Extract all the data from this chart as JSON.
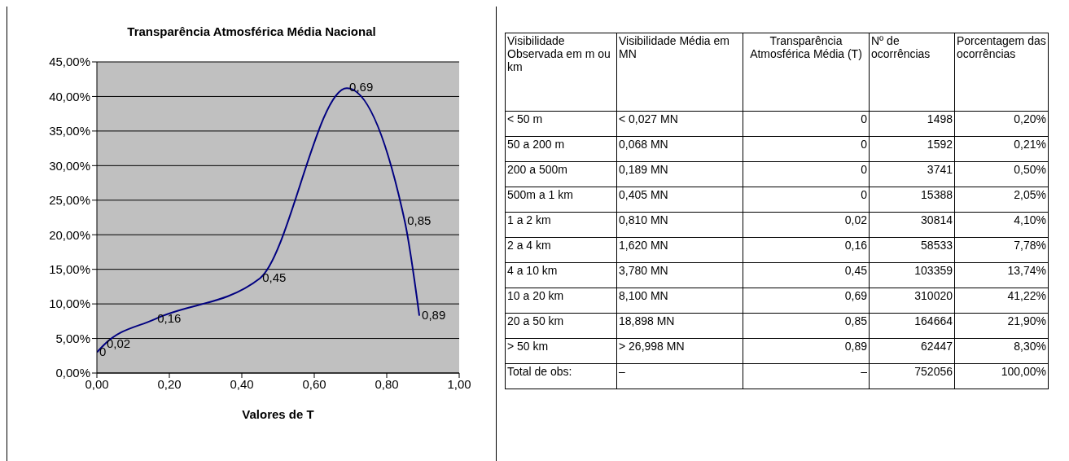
{
  "chart_data": [
    {
      "type": "line",
      "title": "Transparência Atmosférica Média Nacional",
      "xlabel": "Valores de T",
      "x": [
        0,
        0.02,
        0.16,
        0.45,
        0.69,
        0.85,
        0.89
      ],
      "series": [
        {
          "color": "#000080",
          "values": [
            3,
            4.1,
            7.8,
            13.7,
            41.2,
            21.9,
            8.3
          ]
        }
      ],
      "annotations": [
        {
          "text": "0",
          "x": 0,
          "y": 3
        },
        {
          "text": "0,02",
          "x": 0.02,
          "y": 4.1
        },
        {
          "text": "0,16",
          "x": 0.16,
          "y": 7.8
        },
        {
          "text": "0,45",
          "x": 0.45,
          "y": 13.7
        },
        {
          "text": "0,69",
          "x": 0.69,
          "y": 41.2
        },
        {
          "text": "0,85",
          "x": 0.85,
          "y": 21.9
        },
        {
          "text": "0,89",
          "x": 0.89,
          "y": 8.3
        }
      ],
      "xlim": [
        0,
        1
      ],
      "xticks": [
        {
          "value": 0,
          "label": "0,00"
        },
        {
          "value": 0.2,
          "label": "0,20"
        },
        {
          "value": 0.4,
          "label": "0,40"
        },
        {
          "value": 0.6,
          "label": "0,60"
        },
        {
          "value": 0.8,
          "label": "0,80"
        },
        {
          "value": 1,
          "label": "1,00"
        }
      ],
      "ylim": [
        0,
        45
      ],
      "yticks": [
        {
          "value": 0,
          "label": "0,00%"
        },
        {
          "value": 5,
          "label": "5,00%"
        },
        {
          "value": 10,
          "label": "10,00%"
        },
        {
          "value": 15,
          "label": "15,00%"
        },
        {
          "value": 20,
          "label": "20,00%"
        },
        {
          "value": 25,
          "label": "25,00%"
        },
        {
          "value": 30,
          "label": "30,00%"
        },
        {
          "value": 35,
          "label": "35,00%"
        },
        {
          "value": 40,
          "label": "40,00%"
        },
        {
          "value": 45,
          "label": "45,00%"
        }
      ],
      "grid": "y",
      "legend": false
    },
    {
      "type": "other",
      "categories": [
        "Visibilidade Observada em m ou km",
        "Visibilidade Média em MN",
        "Transparência Atmosférica Média (T)",
        "Nº de ocorrências",
        "Porcentagem das ocorrências"
      ],
      "annotations": [
        "< 50 m",
        "< 0,027 MN",
        "0",
        "1498",
        "0,20%",
        " 50 a 200 m",
        "0,068 MN",
        "0",
        "1592",
        "0,21%",
        "200 a 500m",
        "0,189 MN",
        "0",
        "3741",
        "0,50%",
        "500m a 1 km",
        "0,405 MN",
        "0",
        "15388",
        "2,05%",
        "1 a 2 km",
        "0,810 MN",
        "0,02",
        "30814",
        "4,10%",
        "2 a 4 km",
        "1,620 MN",
        "0,16",
        "58533",
        "7,78%",
        "4 a 10 km",
        "3,780 MN",
        "0,45",
        "103359",
        "13,74%",
        "10 a 20 km",
        "8,100 MN",
        "0,69",
        "310020",
        "41,22%",
        "20 a 50 km",
        "18,898 MN",
        "0,85",
        "164664",
        "21,90%",
        "> 50 km",
        "> 26,998 MN",
        "0,89",
        "62447",
        "8,30%",
        "Total de obs:",
        "–",
        "–",
        "752056",
        "100,00%"
      ]
    }
  ]
}
